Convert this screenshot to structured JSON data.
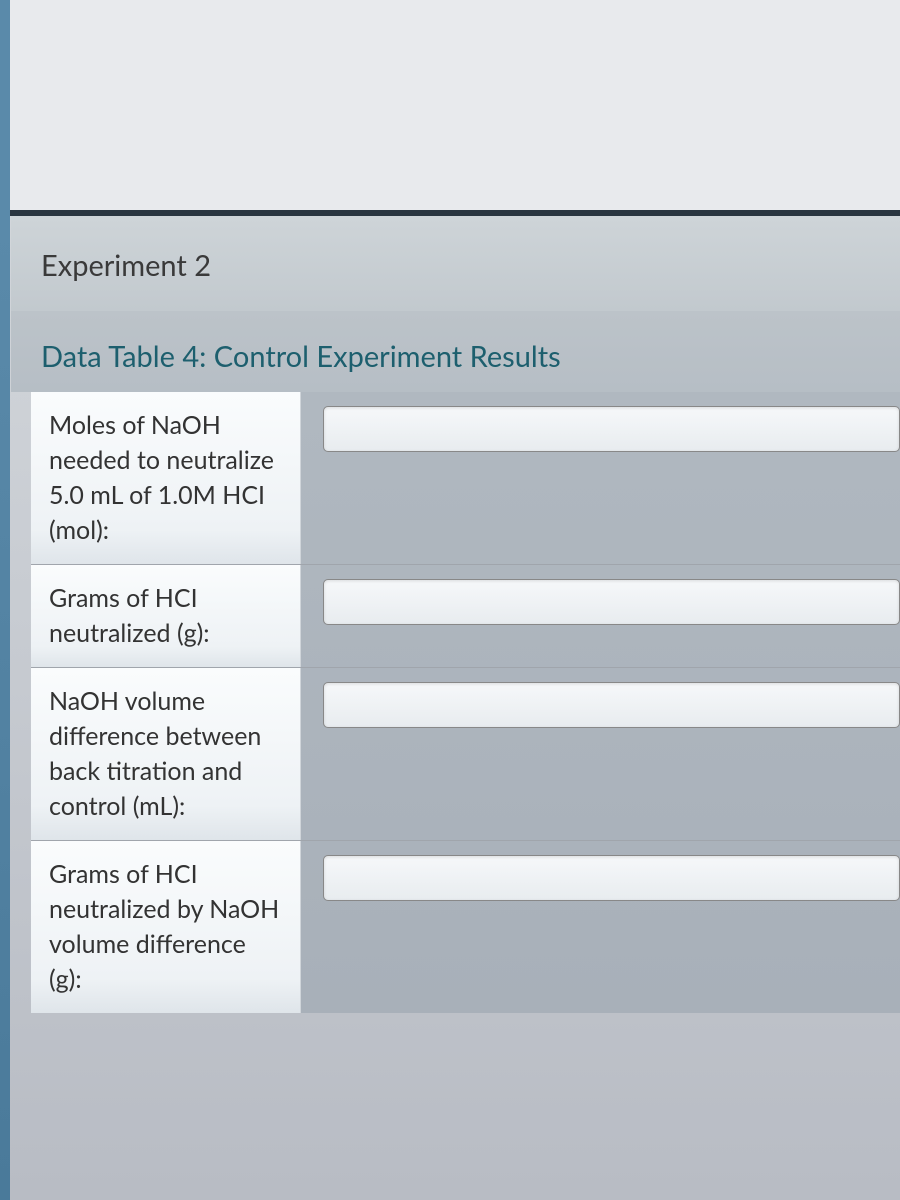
{
  "section": {
    "heading": "Experiment 2",
    "table_title": "Data Table 4: Control Experiment Results"
  },
  "table": {
    "rows": [
      {
        "label": "Moles of NaOH needed to neutralize 5.0 mL of 1.0M HCI (mol):",
        "value": ""
      },
      {
        "label": "Grams of HCI neutralized (g):",
        "value": ""
      },
      {
        "label": "NaOH volume difference between back titration and control (mL):",
        "value": ""
      },
      {
        "label": "Grams of HCI neutralized by NaOH volume difference (g):",
        "value": ""
      }
    ]
  },
  "style": {
    "heading_color": "#1d5f6e",
    "text_color": "#333"
  }
}
